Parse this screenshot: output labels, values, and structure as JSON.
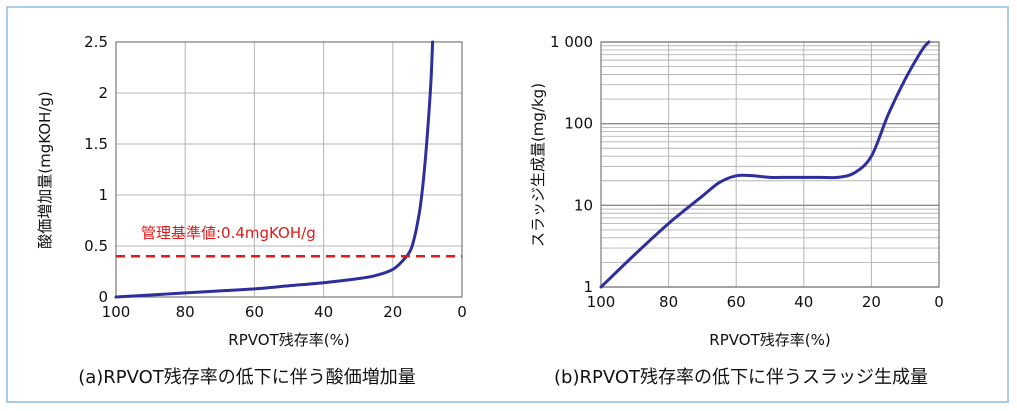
{
  "chart_data": [
    {
      "type": "line",
      "caption": "(a)RPVOT残存率の低下に伴う酸価増加量",
      "xlabel": "RPVOT残存率(%)",
      "ylabel": "酸価増加量(mgKOH/g)",
      "xlim": [
        100,
        0
      ],
      "ylim": [
        0,
        2.5
      ],
      "x_ticks": [
        100,
        80,
        60,
        40,
        20,
        0
      ],
      "y_ticks": [
        0,
        0.5,
        1,
        1.5,
        2,
        2.5
      ],
      "y_tick_labels": [
        "0",
        "0.5",
        "1",
        "1.5",
        "2",
        "2.5"
      ],
      "grid": true,
      "y_scale": "linear",
      "series": [
        {
          "color": "#2d2f9c",
          "x": [
            100,
            95,
            90,
            85,
            80,
            70,
            60,
            50,
            40,
            30,
            25,
            20,
            17,
            15,
            14,
            13,
            12,
            11,
            10,
            9,
            8.5
          ],
          "y": [
            0.0,
            0.01,
            0.02,
            0.03,
            0.04,
            0.06,
            0.08,
            0.11,
            0.14,
            0.18,
            0.21,
            0.27,
            0.36,
            0.45,
            0.55,
            0.7,
            0.9,
            1.2,
            1.6,
            2.1,
            2.5
          ]
        }
      ],
      "reference_line": {
        "value": 0.4,
        "label": "管理基準値:0.4mgKOH/g",
        "color": "#e01a1a",
        "style": "dashed"
      }
    },
    {
      "type": "line",
      "caption": "(b)RPVOT残存率の低下に伴うスラッジ生成量",
      "xlabel": "RPVOT残存率(%)",
      "ylabel": "スラッジ生成量(mg/kg)",
      "xlim": [
        100,
        0
      ],
      "ylim": [
        1,
        1000
      ],
      "x_ticks": [
        100,
        80,
        60,
        40,
        20,
        0
      ],
      "y_ticks": [
        1,
        10,
        100,
        1000
      ],
      "y_tick_labels": [
        "1",
        "10",
        "100",
        "1 000"
      ],
      "grid": true,
      "y_scale": "log",
      "series": [
        {
          "color": "#2d2f9c",
          "x": [
            100,
            90,
            80,
            70,
            65,
            60,
            55,
            50,
            45,
            40,
            35,
            30,
            25,
            20,
            15,
            10,
            5,
            3
          ],
          "y": [
            1,
            2.5,
            6,
            13,
            19,
            23,
            23,
            22,
            22,
            22,
            22,
            22,
            25,
            40,
            130,
            350,
            800,
            1000
          ]
        }
      ]
    }
  ]
}
